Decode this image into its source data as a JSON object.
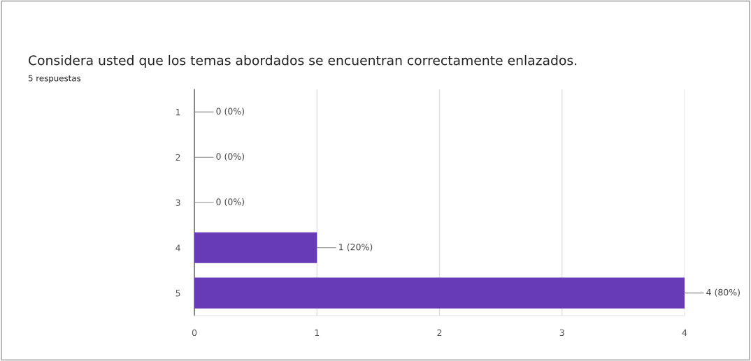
{
  "chart_data": {
    "type": "bar",
    "orientation": "horizontal",
    "title": "Considera usted que los temas abordados se encuentran correctamente enlazados.",
    "subtitle": "5 respuestas",
    "categories": [
      "1",
      "2",
      "3",
      "4",
      "5"
    ],
    "values": [
      0,
      0,
      0,
      1,
      4
    ],
    "value_labels": [
      "0 (0%)",
      "0 (0%)",
      "0 (0%)",
      "1 (20%)",
      "4 (80%)"
    ],
    "color": "#673ab7",
    "xlim": [
      0,
      4
    ],
    "xticks": [
      0,
      1,
      2,
      3,
      4
    ],
    "grid": "x"
  }
}
